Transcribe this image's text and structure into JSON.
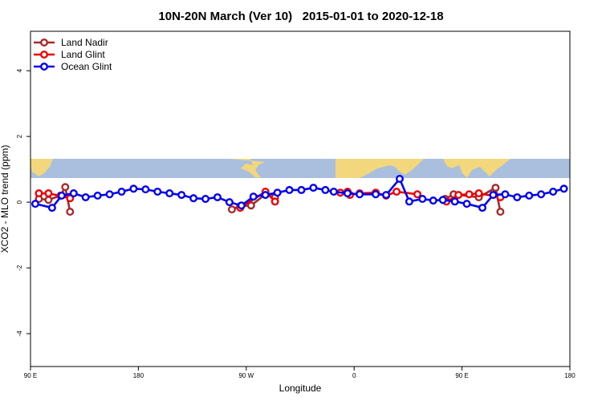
{
  "chart_data": {
    "type": "line",
    "title": "10N-20N March (Ver 10)   2015-01-01 to 2020-12-18",
    "x_label": "Longitude",
    "y_label": "XCO2 - MLO trend (ppm)",
    "xlim": [
      90,
      540
    ],
    "ylim": [
      -5,
      5.2
    ],
    "xticks": [
      {
        "value": 90,
        "label": "90 E"
      },
      180,
      {
        "value": 270,
        "label": "90 W"
      },
      {
        "value": 360,
        "label": "0"
      },
      {
        "value": 450,
        "label": "90 E"
      },
      {
        "value": 540,
        "label": "180"
      }
    ],
    "yticks": [
      -4,
      -2,
      0,
      2,
      4
    ],
    "legend": "top-left",
    "series": [
      {
        "name": "Land Nadir",
        "color": "#a52a2a",
        "x": [
          97,
          105,
          115,
          119,
          123,
          null,
          258,
          265,
          274,
          286,
          294,
          null,
          436,
          443,
          464,
          478,
          482
        ],
        "values": [
          0.1,
          0.07,
          0.2,
          0.46,
          -0.29,
          null,
          -0.22,
          -0.12,
          -0.1,
          0.24,
          0.15,
          null,
          0.1,
          0.24,
          0.15,
          0.44,
          -0.29
        ]
      },
      {
        "name": "Land Glint",
        "color": "#ee0000",
        "x": [
          97,
          105,
          123,
          null,
          265,
          286,
          294,
          null,
          348.5,
          354.5,
          356.5,
          364.6,
          378,
          386.7,
          395.4,
          412.8,
          null,
          437,
          447,
          456,
          464,
          482
        ],
        "values": [
          0.27,
          0.27,
          0.12,
          null,
          -0.17,
          0.32,
          0.02,
          null,
          0.29,
          0.32,
          0.22,
          0.27,
          0.29,
          0.2,
          0.32,
          0.24,
          null,
          0.02,
          0.22,
          0.24,
          0.27,
          0.15
        ]
      },
      {
        "name": "Ocean Glint",
        "color": "#0000ee",
        "x": [
          94,
          108,
          116,
          126,
          136,
          146,
          156,
          166,
          176,
          186,
          196,
          206,
          216,
          226,
          236,
          246,
          256,
          266,
          276,
          286,
          296,
          306,
          316,
          326,
          336,
          343,
          354.5,
          364.6,
          378,
          386.7,
          398,
          406,
          417,
          426,
          434,
          444,
          454,
          467,
          476,
          486,
          496,
          506,
          516,
          526,
          535
        ],
        "values": [
          -0.05,
          -0.17,
          0.2,
          0.27,
          0.15,
          0.2,
          0.24,
          0.32,
          0.41,
          0.39,
          0.32,
          0.27,
          0.22,
          0.12,
          0.1,
          0.15,
          0,
          -0.1,
          0.17,
          0.22,
          0.29,
          0.37,
          0.37,
          0.44,
          0.37,
          0.32,
          0.27,
          0.24,
          0.24,
          0.22,
          0.71,
          0.02,
          0.1,
          0.05,
          0.07,
          0.02,
          -0.05,
          -0.17,
          0.22,
          0.24,
          0.15,
          0.2,
          0.24,
          0.32,
          0.41
        ]
      }
    ]
  }
}
